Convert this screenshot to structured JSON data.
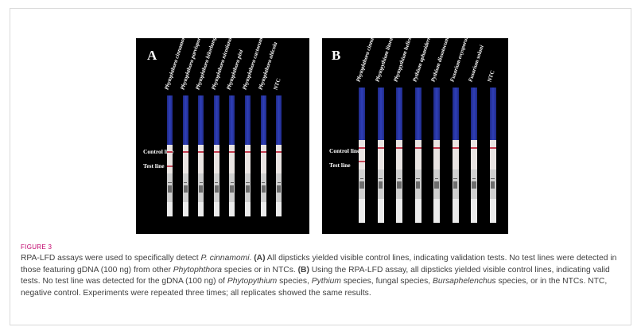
{
  "panel_a": {
    "label": "A",
    "species": [
      "Phytophthora cinnamomi",
      "Phytophthora parvispora",
      "Phytophthora bilorbang",
      "Phytophthora nicotianae",
      "Phytophthora pini",
      "Phytophthora cactorum",
      "Phytophthora alticola"
    ],
    "ntc_label": "NTC",
    "control_line_label": "Control line",
    "test_line_label": "Test line"
  },
  "panel_b": {
    "label": "B",
    "species": [
      "Phytophthora cinnamomi",
      "Phytopythium litorale",
      "Phytopythium helicoides",
      "Pythium aphanidermatum",
      "Pythium dissotocum",
      "Fusarium oxysporum",
      "Fusarium solani"
    ],
    "ntc_label": "NTC",
    "control_line_label": "Control line",
    "test_line_label": "Test line"
  },
  "colors": {
    "strip_blue": "#2f3fb8",
    "line_red": "#c23a4e",
    "figure_label": "#c0006a"
  },
  "figure_label": "FIGURE 3",
  "caption": {
    "s1": "RPA-LFD assays were used to specifically detect ",
    "s1_italic": "P. cinnamomi",
    "s2": ". ",
    "a_label": "(A)",
    "a_text1": " All dipsticks yielded visible control lines, indicating validation tests. No test lines were detected in those featuring gDNA (100 ng) from other ",
    "a_italic": "Phytophthora",
    "a_text2": " species or in NTCs. ",
    "b_label": "(B)",
    "b_text1": " Using the RPA-LFD assay, all dipsticks yielded visible control lines, indicating valid tests. No test line was detected for the gDNA (100 ng) of ",
    "b_it1": "Phytopythium",
    "b_text2": " species, ",
    "b_it2": "Pythium",
    "b_text3": " species, fungal species, ",
    "b_it3": "Bursaphelenchus",
    "b_text4": " species, or in the NTCs. NTC, negative control. Experiments were repeated three times; all replicates showed the same results."
  }
}
